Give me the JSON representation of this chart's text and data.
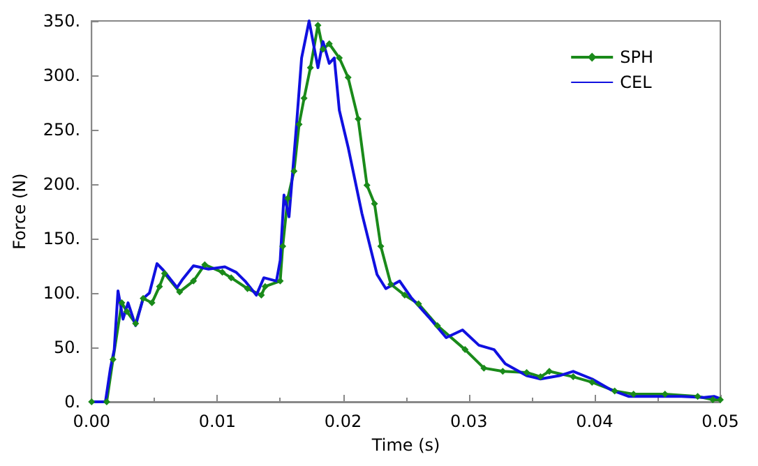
{
  "chart_data": {
    "type": "line",
    "xlabel": "Time (s)",
    "ylabel": "Force (N)",
    "xlim": [
      0,
      0.05
    ],
    "ylim": [
      0,
      350
    ],
    "xticks": [
      {
        "value": 0,
        "label": "0.00"
      },
      {
        "value": 0.01,
        "label": "0.01"
      },
      {
        "value": 0.02,
        "label": "0.02"
      },
      {
        "value": 0.03,
        "label": "0.03"
      },
      {
        "value": 0.04,
        "label": "0.04"
      },
      {
        "value": 0.05,
        "label": "0.05"
      }
    ],
    "yticks": [
      {
        "value": 0,
        "label": "0."
      },
      {
        "value": 50,
        "label": "50."
      },
      {
        "value": 100,
        "label": "100."
      },
      {
        "value": 150,
        "label": "150."
      },
      {
        "value": 200,
        "label": "200."
      },
      {
        "value": 250,
        "label": "250."
      },
      {
        "value": 300,
        "label": "300."
      },
      {
        "value": 350,
        "label": "350."
      }
    ],
    "grid": false,
    "legend": "top right",
    "series": [
      {
        "name": "SPH",
        "color": "#1a8a1a",
        "marker": "diamond",
        "x": [
          0,
          0.0012,
          0.0017,
          0.0024,
          0.0028,
          0.0035,
          0.0041,
          0.0048,
          0.0054,
          0.0058,
          0.007,
          0.0081,
          0.009,
          0.0104,
          0.0111,
          0.0124,
          0.0135,
          0.0138,
          0.015,
          0.0152,
          0.0156,
          0.0161,
          0.0165,
          0.0169,
          0.0174,
          0.018,
          0.0184,
          0.0189,
          0.0197,
          0.0204,
          0.0212,
          0.0219,
          0.0225,
          0.023,
          0.0238,
          0.0249,
          0.026,
          0.0275,
          0.0297,
          0.0312,
          0.0327,
          0.0346,
          0.0357,
          0.0364,
          0.0383,
          0.0398,
          0.0416,
          0.0431,
          0.0456,
          0.0482,
          0.0494,
          0.05
        ],
        "values": [
          0,
          0,
          39,
          91,
          83,
          72,
          95,
          91,
          106,
          118,
          101,
          111,
          126,
          119,
          114,
          104,
          98,
          106,
          111,
          143,
          187,
          212,
          255,
          279,
          307,
          346,
          324,
          329,
          316,
          298,
          260,
          199,
          182,
          143,
          108,
          98,
          90,
          70,
          48,
          31,
          28,
          27,
          23,
          28,
          23,
          18,
          10,
          7,
          7,
          5,
          2,
          2
        ]
      },
      {
        "name": "CEL",
        "color": "#1010e0",
        "marker": "none",
        "x": [
          0,
          0.0011,
          0.0015,
          0.0018,
          0.0021,
          0.0025,
          0.0029,
          0.0035,
          0.0041,
          0.0046,
          0.0052,
          0.0057,
          0.0068,
          0.0072,
          0.0081,
          0.0093,
          0.0106,
          0.0115,
          0.0122,
          0.0131,
          0.0137,
          0.0147,
          0.015,
          0.0153,
          0.0157,
          0.0163,
          0.0167,
          0.0173,
          0.018,
          0.0184,
          0.0189,
          0.0193,
          0.0197,
          0.0204,
          0.0215,
          0.0227,
          0.0234,
          0.0245,
          0.0254,
          0.0268,
          0.0282,
          0.0295,
          0.0308,
          0.032,
          0.0329,
          0.0346,
          0.0357,
          0.0372,
          0.0383,
          0.0398,
          0.0413,
          0.0427,
          0.0446,
          0.0469,
          0.0487,
          0.0495,
          0.05
        ],
        "values": [
          0,
          0,
          31,
          48,
          102,
          76,
          91,
          70,
          95,
          100,
          127,
          121,
          105,
          112,
          125,
          122,
          124,
          119,
          111,
          98,
          114,
          111,
          130,
          190,
          170,
          255,
          316,
          350,
          307,
          331,
          311,
          316,
          268,
          234,
          173,
          117,
          104,
          111,
          96,
          78,
          59,
          66,
          52,
          48,
          35,
          24,
          21,
          24,
          28,
          21,
          11,
          5,
          5,
          5,
          4,
          5,
          3
        ]
      }
    ]
  }
}
